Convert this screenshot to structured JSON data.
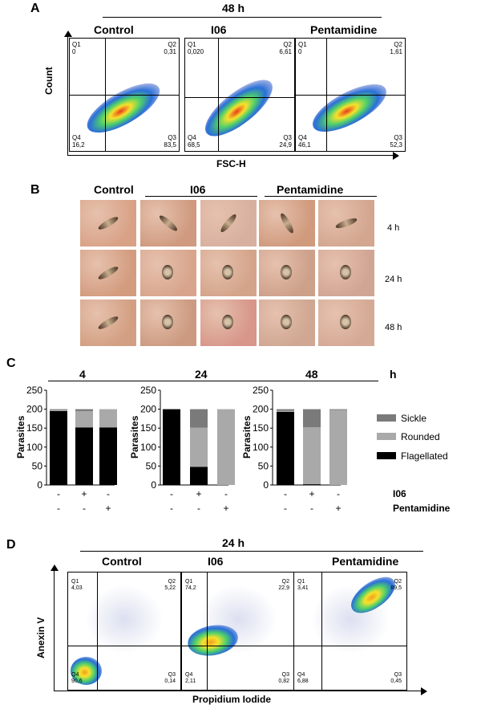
{
  "panelA": {
    "letter": "A",
    "timepoint": "48 h",
    "xlabel": "FSC-H",
    "ylabel": "Count",
    "plots": [
      {
        "title": "Control",
        "q": {
          "Q1": "0",
          "Q2": "0,31",
          "Q3": "83,5",
          "Q4": "16,2"
        }
      },
      {
        "title": "I06",
        "q": {
          "Q1": "0,020",
          "Q2": "6,61",
          "Q3": "24,9",
          "Q4": "68,5"
        }
      },
      {
        "title": "Pentamidine",
        "q": {
          "Q1": "0",
          "Q2": "1,61",
          "Q3": "52,3",
          "Q4": "46,1"
        }
      }
    ],
    "qnames": {
      "Q1": "Q1",
      "Q2": "Q2",
      "Q3": "Q3",
      "Q4": "Q4"
    }
  },
  "panelB": {
    "letter": "B",
    "cols": [
      "Control",
      "I06",
      "Pentamidine"
    ],
    "rows": [
      "4 h",
      "24 h",
      "48 h"
    ]
  },
  "panelC": {
    "letter": "C",
    "h_unit": "h",
    "ylabel": "Parasites",
    "legend": [
      {
        "name": "Sickle",
        "color": "#7a7a7a"
      },
      {
        "name": "Rounded",
        "color": "#a9a9a9"
      },
      {
        "name": "Flagellated",
        "color": "#000000"
      }
    ],
    "row_labels": [
      "I06",
      "Pentamidine"
    ],
    "signs_i06": [
      "-",
      "+",
      "-"
    ],
    "signs_pent": [
      "-",
      "-",
      "+"
    ],
    "chart_data": [
      {
        "type": "bar",
        "title": "4",
        "categories": [
          "Control",
          "I06",
          "Pentamidine"
        ],
        "ylim": [
          0,
          250
        ],
        "series": [
          {
            "name": "Flagellated",
            "values": [
              195,
              152,
              152
            ]
          },
          {
            "name": "Rounded",
            "values": [
              3,
              43,
              48
            ]
          },
          {
            "name": "Sickle",
            "values": [
              2,
              5,
              0
            ]
          }
        ]
      },
      {
        "type": "bar",
        "title": "24",
        "categories": [
          "Control",
          "I06",
          "Pentamidine"
        ],
        "ylim": [
          0,
          250
        ],
        "series": [
          {
            "name": "Flagellated",
            "values": [
              200,
              48,
              0
            ]
          },
          {
            "name": "Rounded",
            "values": [
              0,
              103,
              200
            ]
          },
          {
            "name": "Sickle",
            "values": [
              0,
              49,
              0
            ]
          }
        ]
      },
      {
        "type": "bar",
        "title": "48",
        "categories": [
          "Control",
          "I06",
          "Pentamidine"
        ],
        "ylim": [
          0,
          250
        ],
        "series": [
          {
            "name": "Flagellated",
            "values": [
              193,
              2,
              0
            ]
          },
          {
            "name": "Rounded",
            "values": [
              3,
              150,
              198
            ]
          },
          {
            "name": "Sickle",
            "values": [
              4,
              48,
              2
            ]
          }
        ]
      }
    ],
    "yticks": [
      "0",
      "50",
      "100",
      "150",
      "200",
      "250"
    ]
  },
  "panelD": {
    "letter": "D",
    "timepoint": "24 h",
    "xlabel": "Propidium Iodide",
    "ylabel": "Anexin V",
    "plots": [
      {
        "title": "Control",
        "q": {
          "Q1": "4,03",
          "Q2": "5,22",
          "Q3": "0,14",
          "Q4": "90,6"
        }
      },
      {
        "title": "I06",
        "q": {
          "Q1": "74,2",
          "Q2": "22,9",
          "Q3": "0,82",
          "Q4": "2,11"
        }
      },
      {
        "title": "Pentamidine",
        "q": {
          "Q1": "3,41",
          "Q2": "89,5",
          "Q3": "0,45",
          "Q4": "6,88"
        }
      }
    ]
  }
}
